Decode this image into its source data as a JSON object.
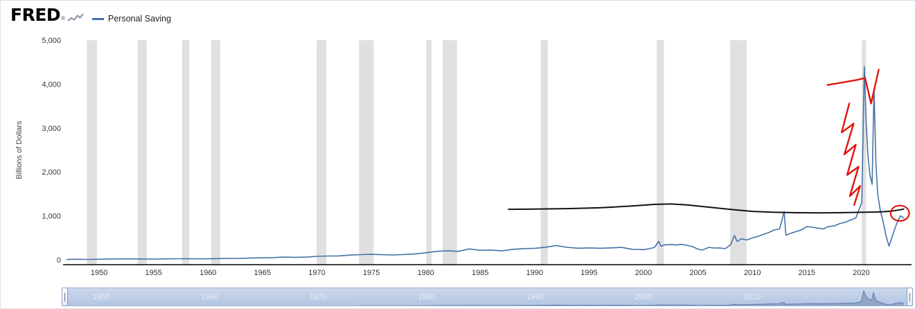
{
  "header": {
    "logo_text": "FRED",
    "logo_reg": "®",
    "legend": {
      "label": "Personal Saving",
      "swatch_color": "#4572a7"
    }
  },
  "chart_data": {
    "type": "line",
    "title": "Personal Saving",
    "ylabel": "Billions of Dollars",
    "x_domain": [
      1947,
      2024.3
    ],
    "y_domain": [
      0,
      5000
    ],
    "grid": false,
    "legend_position": "top-left",
    "y_ticks": [
      {
        "value": 0,
        "label": "0"
      },
      {
        "value": 1000,
        "label": "1,000"
      },
      {
        "value": 2000,
        "label": "2,000"
      },
      {
        "value": 3000,
        "label": "3,000"
      },
      {
        "value": 4000,
        "label": "4,000"
      },
      {
        "value": 5000,
        "label": "5,000"
      }
    ],
    "x_ticks": [
      {
        "value": 1950,
        "label": "1950"
      },
      {
        "value": 1955,
        "label": "1955"
      },
      {
        "value": 1960,
        "label": "1960"
      },
      {
        "value": 1965,
        "label": "1965"
      },
      {
        "value": 1970,
        "label": "1970"
      },
      {
        "value": 1975,
        "label": "1975"
      },
      {
        "value": 1980,
        "label": "1980"
      },
      {
        "value": 1985,
        "label": "1985"
      },
      {
        "value": 1990,
        "label": "1990"
      },
      {
        "value": 1995,
        "label": "1995"
      },
      {
        "value": 2000,
        "label": "2000"
      },
      {
        "value": 2005,
        "label": "2005"
      },
      {
        "value": 2010,
        "label": "2010"
      },
      {
        "value": 2015,
        "label": "2015"
      },
      {
        "value": 2020,
        "label": "2020"
      }
    ],
    "colors": {
      "line": "#4572a7",
      "recession": "#e0e0e0",
      "axis": "#000000",
      "mini_fill": "#8ea4c6",
      "mini_line": "#5e78a8"
    },
    "recessions": [
      [
        1948.87,
        1949.79
      ],
      [
        1953.54,
        1954.37
      ],
      [
        1957.62,
        1958.29
      ],
      [
        1960.29,
        1961.12
      ],
      [
        1969.96,
        1970.87
      ],
      [
        1973.87,
        1975.21
      ],
      [
        1980.04,
        1980.54
      ],
      [
        1981.54,
        1982.87
      ],
      [
        1990.54,
        1991.21
      ],
      [
        2001.21,
        2001.87
      ],
      [
        2007.96,
        2009.46
      ],
      [
        2020.05,
        2020.45
      ]
    ],
    "series": [
      {
        "name": "Personal Saving",
        "color": "#4572a7",
        "points": [
          [
            1947,
            6
          ],
          [
            1948,
            12
          ],
          [
            1949,
            8
          ],
          [
            1950,
            13
          ],
          [
            1951,
            19
          ],
          [
            1952,
            20
          ],
          [
            1953,
            21
          ],
          [
            1954,
            19
          ],
          [
            1955,
            16
          ],
          [
            1956,
            21
          ],
          [
            1957,
            23
          ],
          [
            1958,
            25
          ],
          [
            1959,
            22
          ],
          [
            1960,
            22
          ],
          [
            1961,
            28
          ],
          [
            1962,
            31
          ],
          [
            1963,
            33
          ],
          [
            1964,
            41
          ],
          [
            1965,
            46
          ],
          [
            1966,
            51
          ],
          [
            1967,
            62
          ],
          [
            1968,
            57
          ],
          [
            1969,
            62
          ],
          [
            1970,
            79
          ],
          [
            1971,
            87
          ],
          [
            1972,
            88
          ],
          [
            1973,
            108
          ],
          [
            1974,
            119
          ],
          [
            1975,
            125
          ],
          [
            1976,
            116
          ],
          [
            1977,
            111
          ],
          [
            1978,
            122
          ],
          [
            1979,
            133
          ],
          [
            1980,
            161
          ],
          [
            1981,
            192
          ],
          [
            1982,
            207
          ],
          [
            1983,
            192
          ],
          [
            1984,
            248
          ],
          [
            1985,
            216
          ],
          [
            1986,
            222
          ],
          [
            1987,
            203
          ],
          [
            1988,
            238
          ],
          [
            1989,
            255
          ],
          [
            1990,
            262
          ],
          [
            1991,
            287
          ],
          [
            1992,
            325
          ],
          [
            1993,
            284
          ],
          [
            1994,
            264
          ],
          [
            1995,
            272
          ],
          [
            1996,
            263
          ],
          [
            1997,
            271
          ],
          [
            1998,
            282
          ],
          [
            1999,
            238
          ],
          [
            2000,
            232
          ],
          [
            2000.5,
            252
          ],
          [
            2001,
            282
          ],
          [
            2001.4,
            420
          ],
          [
            2001.6,
            310
          ],
          [
            2002,
            342
          ],
          [
            2002.5,
            348
          ],
          [
            2003,
            338
          ],
          [
            2003.5,
            352
          ],
          [
            2004,
            330
          ],
          [
            2004.5,
            298
          ],
          [
            2005,
            244
          ],
          [
            2005.4,
            222
          ],
          [
            2006,
            282
          ],
          [
            2006.5,
            268
          ],
          [
            2007,
            272
          ],
          [
            2007.5,
            252
          ],
          [
            2008,
            342
          ],
          [
            2008.35,
            552
          ],
          [
            2008.6,
            418
          ],
          [
            2009,
            478
          ],
          [
            2009.5,
            452
          ],
          [
            2010,
            498
          ],
          [
            2010.5,
            532
          ],
          [
            2011,
            578
          ],
          [
            2011.5,
            622
          ],
          [
            2012,
            678
          ],
          [
            2012.5,
            702
          ],
          [
            2012.92,
            1098
          ],
          [
            2013.08,
            558
          ],
          [
            2013.5,
            602
          ],
          [
            2014,
            642
          ],
          [
            2014.5,
            682
          ],
          [
            2015,
            758
          ],
          [
            2015.5,
            742
          ],
          [
            2016,
            722
          ],
          [
            2016.5,
            702
          ],
          [
            2017,
            758
          ],
          [
            2017.5,
            772
          ],
          [
            2018,
            822
          ],
          [
            2018.5,
            852
          ],
          [
            2019,
            902
          ],
          [
            2019.5,
            952
          ],
          [
            2020.05,
            1302
          ],
          [
            2020.28,
            4398
          ],
          [
            2020.45,
            3150
          ],
          [
            2020.6,
            2420
          ],
          [
            2020.8,
            1920
          ],
          [
            2021.0,
            1720
          ],
          [
            2021.17,
            3898
          ],
          [
            2021.35,
            2180
          ],
          [
            2021.5,
            1520
          ],
          [
            2021.75,
            1120
          ],
          [
            2022.0,
            880
          ],
          [
            2022.3,
            520
          ],
          [
            2022.55,
            312
          ],
          [
            2022.75,
            458
          ],
          [
            2023.0,
            652
          ],
          [
            2023.3,
            852
          ],
          [
            2023.6,
            1002
          ],
          [
            2023.95,
            948
          ]
        ]
      }
    ],
    "annotations": {
      "black_line": {
        "color": "#111111",
        "points": [
          [
            1987.6,
            1150
          ],
          [
            1990,
            1155
          ],
          [
            1993,
            1165
          ],
          [
            1996,
            1185
          ],
          [
            1999,
            1225
          ],
          [
            2001,
            1262
          ],
          [
            2002.5,
            1272
          ],
          [
            2004,
            1250
          ],
          [
            2006,
            1198
          ],
          [
            2008,
            1148
          ],
          [
            2010,
            1102
          ],
          [
            2012,
            1082
          ],
          [
            2014,
            1072
          ],
          [
            2016,
            1068
          ],
          [
            2018,
            1072
          ],
          [
            2020,
            1082
          ],
          [
            2021.5,
            1088
          ],
          [
            2022.8,
            1108
          ],
          [
            2023.9,
            1155
          ]
        ]
      },
      "red_scribble": {
        "color": "#e0150d",
        "paths": [
          [
            [
              2016.9,
              3980
            ],
            [
              2018.3,
              4040
            ],
            [
              2019.7,
              4100
            ],
            [
              2020.35,
              4140
            ],
            [
              2020.9,
              3560
            ],
            [
              2021.6,
              4330
            ]
          ],
          [
            [
              2018.9,
              3560
            ],
            [
              2018.2,
              2900
            ],
            [
              2019.3,
              3100
            ],
            [
              2018.45,
              2400
            ],
            [
              2019.5,
              2620
            ],
            [
              2018.7,
              1930
            ],
            [
              2019.75,
              2120
            ],
            [
              2018.95,
              1450
            ],
            [
              2019.9,
              1680
            ],
            [
              2019.35,
              1250
            ]
          ]
        ],
        "ellipse": {
          "x": 2023.55,
          "y": 1060,
          "rx_years": 0.85,
          "ry_value": 175
        }
      }
    }
  },
  "slider": {
    "labels": [
      {
        "year": 1950,
        "text": "1950"
      },
      {
        "year": 1960,
        "text": "1960"
      },
      {
        "year": 1970,
        "text": "1970"
      },
      {
        "year": 1980,
        "text": "1980"
      },
      {
        "year": 1990,
        "text": "1990"
      },
      {
        "year": 2000,
        "text": "2000"
      },
      {
        "year": 2010,
        "text": "2010"
      }
    ]
  }
}
